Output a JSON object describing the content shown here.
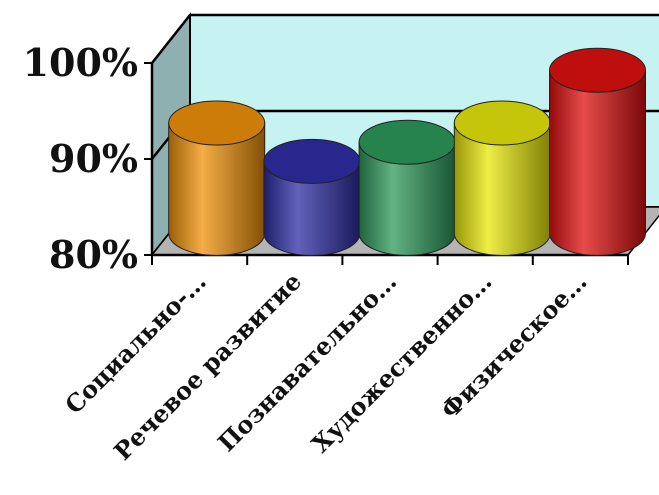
{
  "chart_data": {
    "type": "bar",
    "style": "3d-cylinder",
    "title": "",
    "xlabel": "",
    "ylabel": "",
    "categories": [
      "Социально-…",
      "Речевое развитие",
      "Познавательно…",
      "Художественно…",
      "Физическое…"
    ],
    "values": [
      91.5,
      87.5,
      89.5,
      91.5,
      97
    ],
    "ylim": [
      80,
      100
    ],
    "yticks": [
      "80%",
      "90%",
      "100%"
    ],
    "ytick_values": [
      80,
      90,
      100
    ],
    "grid": true,
    "legend": "none",
    "colors": [
      "#f0920a",
      "#2e2ea6",
      "#2e9a5a",
      "#e8e80a",
      "#e01010"
    ],
    "wall_color": "#c6f2f2",
    "floor_color": "#b4b4b4"
  }
}
